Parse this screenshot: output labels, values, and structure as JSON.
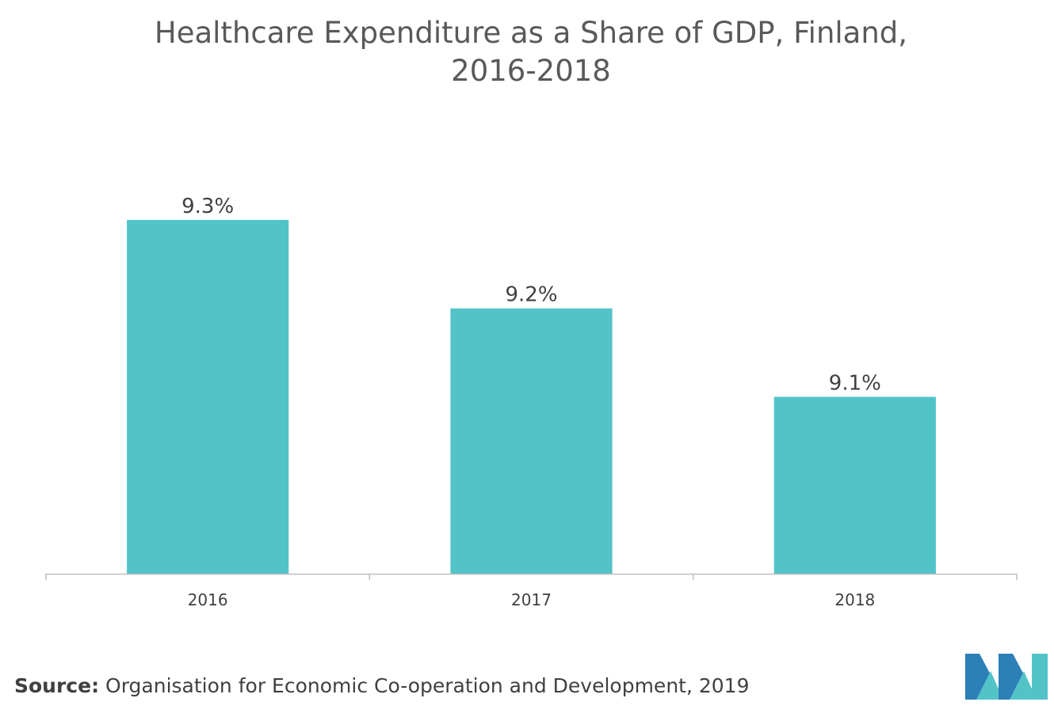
{
  "chart_data": {
    "type": "bar",
    "title_lines": [
      "Healthcare Expenditure as a Share of GDP, Finland,",
      "2016-2018"
    ],
    "categories": [
      "2016",
      "2017",
      "2018"
    ],
    "values": [
      9.3,
      9.2,
      9.1
    ],
    "data_labels": [
      "9.3%",
      "9.2%",
      "9.1%"
    ],
    "xlabel": "",
    "ylabel": "",
    "ylim": [
      8.9,
      9.35
    ],
    "grid": false,
    "legend": "none",
    "bar_color": "#52C4C8",
    "axis_color": "#BFBFBF"
  },
  "footer": {
    "source_label": "Source:",
    "source_text": " Organisation for Economic Co-operation and Development, 2019"
  },
  "brand": {
    "logo_icon": "mordor-intelligence-logo",
    "colors": [
      "#2D7FB8",
      "#52C4C8"
    ]
  }
}
